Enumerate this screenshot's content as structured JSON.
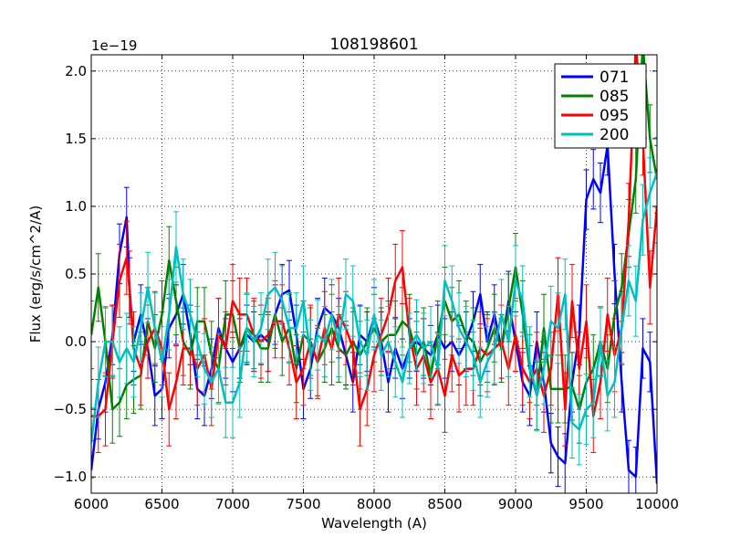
{
  "chart_data": {
    "type": "line",
    "title": "108198601",
    "xlabel": "Wavelength (A)",
    "ylabel": "Flux (erg/s/cm^2/A)",
    "offset_label": "1e−19",
    "xlim": [
      6000,
      10000
    ],
    "ylim": [
      -1.12,
      2.12
    ],
    "xticks": [
      6000,
      6500,
      7000,
      7500,
      8000,
      8500,
      9000,
      9500,
      10000
    ],
    "xtick_labels": [
      "6000",
      "6500",
      "7000",
      "7500",
      "8000",
      "8500",
      "9000",
      "9500",
      "10000"
    ],
    "yticks": [
      -1.0,
      -0.5,
      0.0,
      0.5,
      1.0,
      1.5,
      2.0
    ],
    "ytick_labels": [
      "−1.0",
      "−0.5",
      "0.0",
      "0.5",
      "1.0",
      "1.5",
      "2.0"
    ],
    "grid": true,
    "legend_position": "top-right",
    "series": [
      {
        "name": "071",
        "color": "#0000ff",
        "x": [
          6000,
          6050,
          6100,
          6150,
          6200,
          6250,
          6270,
          6300,
          6350,
          6400,
          6450,
          6500,
          6550,
          6600,
          6650,
          6700,
          6750,
          6800,
          6850,
          6900,
          6950,
          7000,
          7050,
          7100,
          7150,
          7200,
          7250,
          7300,
          7350,
          7400,
          7450,
          7500,
          7550,
          7600,
          7650,
          7700,
          7750,
          7800,
          7850,
          7900,
          7950,
          8000,
          8050,
          8100,
          8150,
          8200,
          8250,
          8300,
          8350,
          8400,
          8450,
          8500,
          8550,
          8600,
          8650,
          8700,
          8750,
          8800,
          8850,
          8900,
          8950,
          9000,
          9050,
          9100,
          9150,
          9200,
          9250,
          9300,
          9350,
          9400,
          9450,
          9500,
          9550,
          9600,
          9650,
          9700,
          9750,
          9800,
          9850,
          9900,
          9950,
          10000
        ],
        "y": [
          -0.95,
          -0.5,
          -0.3,
          0.05,
          0.65,
          0.92,
          0.4,
          0.0,
          0.2,
          -0.05,
          -0.4,
          -0.35,
          0.1,
          0.2,
          0.35,
          0.05,
          -0.35,
          -0.4,
          -0.2,
          0.1,
          -0.05,
          -0.15,
          -0.05,
          0.05,
          0.0,
          0.05,
          0.0,
          0.2,
          0.35,
          0.38,
          0.05,
          -0.35,
          -0.2,
          0.1,
          0.25,
          0.2,
          0.1,
          -0.1,
          -0.3,
          0.05,
          0.0,
          0.18,
          0.0,
          -0.3,
          -0.05,
          -0.2,
          -0.05,
          0.0,
          -0.05,
          -0.1,
          0.05,
          -0.05,
          0.0,
          -0.1,
          0.0,
          0.15,
          0.35,
          0.0,
          0.2,
          -0.05,
          0.3,
          0.0,
          -0.3,
          -0.4,
          0.0,
          -0.3,
          -0.75,
          -0.85,
          -0.9,
          -0.3,
          0.05,
          1.05,
          1.2,
          1.1,
          1.45,
          0.5,
          -0.3,
          -0.95,
          -1.0,
          -0.05,
          -0.15,
          -1.05
        ],
        "err": 0.22
      },
      {
        "name": "085",
        "color": "#008000",
        "x": [
          6000,
          6050,
          6100,
          6150,
          6200,
          6250,
          6300,
          6350,
          6400,
          6450,
          6500,
          6550,
          6600,
          6650,
          6700,
          6750,
          6800,
          6850,
          6900,
          6950,
          7000,
          7050,
          7100,
          7150,
          7200,
          7250,
          7300,
          7350,
          7400,
          7450,
          7500,
          7550,
          7600,
          7650,
          7700,
          7750,
          7800,
          7850,
          7900,
          7950,
          8000,
          8050,
          8100,
          8150,
          8200,
          8250,
          8300,
          8350,
          8400,
          8450,
          8500,
          8550,
          8600,
          8650,
          8700,
          8750,
          8800,
          8850,
          8900,
          8950,
          9000,
          9050,
          9100,
          9150,
          9200,
          9250,
          9300,
          9350,
          9400,
          9450,
          9500,
          9550,
          9600,
          9650,
          9700,
          9750,
          9800,
          9850,
          9900,
          9950,
          10000
        ],
        "y": [
          0.05,
          0.4,
          0.0,
          -0.5,
          -0.45,
          -0.32,
          -0.28,
          -0.25,
          0.15,
          -0.05,
          0.2,
          0.6,
          0.3,
          0.0,
          -0.1,
          0.15,
          0.15,
          -0.1,
          -0.2,
          0.2,
          0.2,
          -0.05,
          0.1,
          0.05,
          -0.05,
          -0.05,
          0.2,
          0.0,
          0.1,
          -0.2,
          0.05,
          0.0,
          -0.15,
          -0.05,
          0.1,
          -0.05,
          -0.1,
          0.0,
          -0.1,
          0.0,
          0.1,
          0.0,
          0.05,
          0.05,
          0.15,
          0.1,
          -0.1,
          0.0,
          -0.25,
          0.05,
          0.3,
          0.15,
          0.2,
          0.05,
          0.0,
          -0.15,
          -0.05,
          0.1,
          -0.05,
          0.25,
          0.55,
          0.2,
          -0.2,
          -0.4,
          0.1,
          -0.35,
          -0.35,
          -0.35,
          -0.33,
          -0.5,
          -0.3,
          -0.2,
          0.0,
          -0.2,
          0.2,
          0.4,
          0.8,
          1.2,
          2.2,
          1.5,
          1.2
        ],
        "err": 0.25
      },
      {
        "name": "095",
        "color": "#ff0000",
        "x": [
          6000,
          6050,
          6100,
          6150,
          6200,
          6250,
          6270,
          6300,
          6350,
          6400,
          6450,
          6500,
          6550,
          6600,
          6650,
          6700,
          6750,
          6800,
          6850,
          6900,
          6950,
          7000,
          7050,
          7100,
          7150,
          7200,
          7250,
          7300,
          7350,
          7400,
          7450,
          7500,
          7550,
          7600,
          7650,
          7700,
          7750,
          7800,
          7850,
          7900,
          7950,
          8000,
          8050,
          8100,
          8150,
          8200,
          8250,
          8300,
          8350,
          8400,
          8450,
          8500,
          8550,
          8600,
          8650,
          8700,
          8750,
          8800,
          8850,
          8900,
          8950,
          9000,
          9050,
          9100,
          9150,
          9200,
          9250,
          9300,
          9350,
          9400,
          9450,
          9500,
          9550,
          9600,
          9650,
          9700,
          9750,
          9800,
          9850,
          9900,
          9950,
          10000
        ],
        "y": [
          -0.55,
          -0.55,
          -0.5,
          0.0,
          0.45,
          0.62,
          0.4,
          -0.05,
          -0.2,
          0.0,
          0.1,
          -0.05,
          -0.5,
          -0.3,
          -0.05,
          -0.05,
          -0.2,
          -0.1,
          -0.35,
          0.05,
          -0.05,
          0.3,
          0.2,
          0.2,
          0.05,
          0.0,
          0.05,
          0.15,
          0.15,
          -0.05,
          -0.3,
          -0.2,
          0.0,
          -0.15,
          0.1,
          -0.05,
          0.2,
          0.1,
          -0.05,
          -0.5,
          -0.35,
          -0.1,
          0.05,
          0.2,
          0.45,
          0.55,
          0.05,
          -0.2,
          -0.1,
          -0.3,
          -0.2,
          -0.4,
          -0.1,
          -0.25,
          -0.2,
          -0.2,
          -0.05,
          -0.1,
          -0.05,
          0.0,
          -0.2,
          0.05,
          -0.2,
          -0.3,
          -0.2,
          -0.4,
          -0.2,
          0.35,
          -0.5,
          0.3,
          -0.2,
          0.15,
          -0.55,
          -0.3,
          0.2,
          -0.1,
          0.1,
          0.9,
          2.2,
          1.5,
          0.4,
          1.0
        ],
        "err": 0.27
      },
      {
        "name": "200",
        "color": "#00bfbf",
        "x": [
          6000,
          6050,
          6100,
          6150,
          6200,
          6250,
          6300,
          6350,
          6400,
          6450,
          6500,
          6550,
          6600,
          6650,
          6700,
          6750,
          6800,
          6850,
          6900,
          6950,
          7000,
          7050,
          7100,
          7150,
          7200,
          7250,
          7300,
          7350,
          7400,
          7450,
          7500,
          7550,
          7600,
          7650,
          7700,
          7750,
          7800,
          7850,
          7900,
          7950,
          8000,
          8050,
          8100,
          8150,
          8200,
          8250,
          8300,
          8350,
          8400,
          8450,
          8500,
          8550,
          8600,
          8650,
          8700,
          8750,
          8800,
          8850,
          8900,
          8950,
          9000,
          9050,
          9100,
          9150,
          9200,
          9250,
          9300,
          9350,
          9400,
          9450,
          9500,
          9550,
          9600,
          9650,
          9700,
          9750,
          9800,
          9850,
          9900,
          9950,
          10000
        ],
        "y": [
          -0.75,
          -0.3,
          0.0,
          0.0,
          -0.15,
          -0.05,
          -0.15,
          0.1,
          0.4,
          0.1,
          -0.15,
          0.2,
          0.7,
          0.35,
          0.2,
          0.0,
          -0.2,
          -0.3,
          -0.2,
          -0.45,
          -0.45,
          -0.3,
          0.1,
          0.0,
          0.1,
          0.35,
          0.4,
          0.3,
          0.1,
          0.1,
          0.3,
          -0.1,
          0.05,
          0.0,
          0.2,
          0.0,
          0.35,
          0.3,
          0.0,
          -0.1,
          0.2,
          -0.1,
          0.0,
          -0.15,
          -0.3,
          -0.05,
          0.05,
          -0.05,
          0.0,
          -0.2,
          0.45,
          0.3,
          0.1,
          0.0,
          -0.1,
          -0.3,
          -0.15,
          -0.05,
          0.2,
          0.0,
          0.45,
          0.3,
          -0.15,
          -0.4,
          -0.2,
          0.15,
          0.1,
          0.35,
          -0.6,
          -0.65,
          -0.5,
          -0.45,
          0.0,
          -0.4,
          -0.3,
          0.1,
          0.45,
          0.3,
          0.9,
          1.1,
          1.25
        ],
        "err": 0.26
      }
    ]
  }
}
